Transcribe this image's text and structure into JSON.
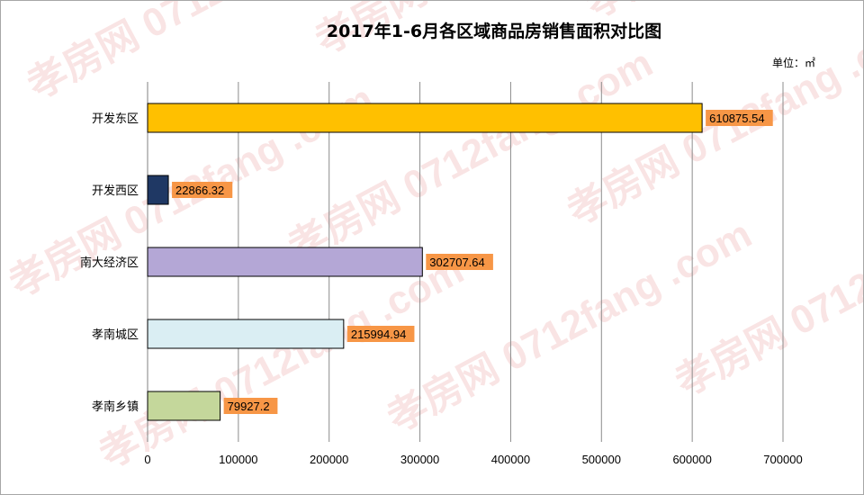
{
  "chart_data": {
    "type": "bar",
    "orientation": "horizontal",
    "title": "2017年1-6月各区域商品房销售面积对比图",
    "unit": "单位：㎡",
    "categories": [
      "开发东区",
      "开发西区",
      "南大经济区",
      "孝南城区",
      "孝南乡镇"
    ],
    "values": [
      610875.54,
      22866.32,
      302707.64,
      215994.94,
      79927.2
    ],
    "data_labels": [
      "610875.54",
      "22866.32",
      "302707.64",
      "215994.94",
      "79927.2"
    ],
    "colors": [
      "#ffc000",
      "#1f3864",
      "#b4a7d6",
      "#daeef3",
      "#c4d79b"
    ],
    "xlim": [
      0,
      700000
    ],
    "xticks": [
      0,
      100000,
      200000,
      300000,
      400000,
      500000,
      600000,
      700000
    ],
    "xtick_labels": [
      "0",
      "100000",
      "200000",
      "300000",
      "400000",
      "500000",
      "600000",
      "700000"
    ],
    "grid": true,
    "label_bg_color": "#f79646"
  },
  "watermark": {
    "texts": [
      "孝房网",
      "0712fang",
      ".com"
    ]
  }
}
